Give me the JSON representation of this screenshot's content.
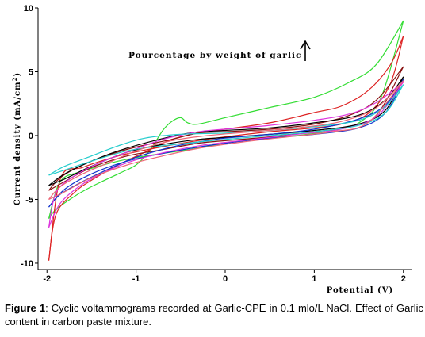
{
  "chart_data": {
    "type": "line",
    "title": "",
    "xlabel": "Potential (V)",
    "ylabel_main": "Current density (mA/cm",
    "ylabel_sup": "2",
    "ylabel_tail": ")",
    "xlim": [
      -2.1,
      2.1
    ],
    "ylim": [
      -10.5,
      10
    ],
    "x_ticks": [
      -2,
      -1,
      0,
      1,
      2
    ],
    "x_tick_labels": [
      "-2",
      "-1",
      "0",
      "1",
      "2"
    ],
    "y_ticks": [
      -10,
      -5,
      0,
      5,
      10
    ],
    "y_tick_labels": [
      "-10",
      "-5",
      "0",
      "5",
      "10"
    ],
    "grid": false,
    "annotation": "Pourcentage by weight of garlic",
    "series": [
      {
        "color": "#33dd33",
        "upper": [
          [
            -1.98,
            -6.5
          ],
          [
            -1.9,
            -5.8
          ],
          [
            -1.7,
            -4.8
          ],
          [
            -1.5,
            -4.0
          ],
          [
            -1.2,
            -3.0
          ],
          [
            -1.0,
            -2.3
          ],
          [
            -0.85,
            -1.2
          ],
          [
            -0.7,
            0.4
          ],
          [
            -0.6,
            1.1
          ],
          [
            -0.5,
            1.4
          ],
          [
            -0.42,
            1.0
          ],
          [
            -0.3,
            0.9
          ],
          [
            0,
            1.4
          ],
          [
            0.5,
            2.2
          ],
          [
            1.0,
            3.0
          ],
          [
            1.4,
            4.2
          ],
          [
            1.7,
            5.6
          ],
          [
            2.0,
            9.0
          ]
        ],
        "lower": [
          [
            -1.98,
            -6.5
          ],
          [
            -1.85,
            -3.6
          ],
          [
            -1.6,
            -2.8
          ],
          [
            -1.2,
            -2.0
          ],
          [
            -0.8,
            -1.5
          ],
          [
            -0.4,
            -1.1
          ],
          [
            0,
            -0.6
          ],
          [
            0.4,
            -0.2
          ],
          [
            0.8,
            0.0
          ],
          [
            1.2,
            0.4
          ],
          [
            1.5,
            1.0
          ],
          [
            1.75,
            3.0
          ],
          [
            2.0,
            9.0
          ]
        ]
      },
      {
        "color": "#dd2222",
        "upper": [
          [
            -1.98,
            -9.8
          ],
          [
            -1.9,
            -6.2
          ],
          [
            -1.7,
            -4.5
          ],
          [
            -1.5,
            -3.5
          ],
          [
            -1.2,
            -2.3
          ],
          [
            -0.9,
            -1.3
          ],
          [
            -0.6,
            -0.3
          ],
          [
            -0.3,
            0.2
          ],
          [
            0,
            0.5
          ],
          [
            0.5,
            1.0
          ],
          [
            1.0,
            1.8
          ],
          [
            1.3,
            2.3
          ],
          [
            1.6,
            3.5
          ],
          [
            1.85,
            5.5
          ],
          [
            2.0,
            7.8
          ]
        ],
        "lower": [
          [
            -1.98,
            -9.8
          ],
          [
            -1.85,
            -3.4
          ],
          [
            -1.6,
            -2.5
          ],
          [
            -1.2,
            -1.6
          ],
          [
            -0.8,
            -1.0
          ],
          [
            -0.4,
            -0.5
          ],
          [
            0,
            -0.1
          ],
          [
            0.5,
            0.3
          ],
          [
            1.0,
            0.6
          ],
          [
            1.3,
            0.9
          ],
          [
            1.6,
            1.7
          ],
          [
            1.85,
            4.0
          ],
          [
            2.0,
            7.8
          ]
        ]
      },
      {
        "color": "#881111",
        "upper": [
          [
            -1.98,
            -4.3
          ],
          [
            -1.85,
            -3.3
          ],
          [
            -1.6,
            -2.3
          ],
          [
            -1.3,
            -1.5
          ],
          [
            -1.0,
            -0.9
          ],
          [
            -0.6,
            -0.3
          ],
          [
            -0.3,
            0.2
          ],
          [
            0,
            0.3
          ],
          [
            0.5,
            0.5
          ],
          [
            1.0,
            0.9
          ],
          [
            1.4,
            1.6
          ],
          [
            1.7,
            2.8
          ],
          [
            2.0,
            5.4
          ]
        ],
        "lower": [
          [
            -1.98,
            -4.3
          ],
          [
            -1.8,
            -3.6
          ],
          [
            -1.5,
            -2.5
          ],
          [
            -1.1,
            -1.6
          ],
          [
            -0.7,
            -1.1
          ],
          [
            -0.3,
            -0.6
          ],
          [
            0,
            -0.4
          ],
          [
            0.5,
            -0.1
          ],
          [
            1.0,
            0.3
          ],
          [
            1.4,
            0.7
          ],
          [
            1.7,
            1.6
          ],
          [
            2.0,
            5.4
          ]
        ]
      },
      {
        "color": "#000000",
        "upper": [
          [
            -1.98,
            -3.9
          ],
          [
            -1.8,
            -3.0
          ],
          [
            -1.5,
            -2.0
          ],
          [
            -1.2,
            -1.2
          ],
          [
            -0.8,
            -0.4
          ],
          [
            -0.4,
            0.2
          ],
          [
            0,
            0.4
          ],
          [
            0.5,
            0.6
          ],
          [
            1.0,
            1.0
          ],
          [
            1.5,
            1.6
          ],
          [
            1.8,
            2.8
          ],
          [
            2.0,
            4.6
          ]
        ],
        "lower": [
          [
            -1.98,
            -3.9
          ],
          [
            -1.8,
            -3.4
          ],
          [
            -1.5,
            -2.4
          ],
          [
            -1.1,
            -1.3
          ],
          [
            -0.7,
            -0.7
          ],
          [
            -0.3,
            -0.3
          ],
          [
            0,
            -0.15
          ],
          [
            0.5,
            0.1
          ],
          [
            1.0,
            0.4
          ],
          [
            1.5,
            0.9
          ],
          [
            1.8,
            2.0
          ],
          [
            2.0,
            4.6
          ]
        ]
      },
      {
        "color": "#1133cc",
        "upper": [
          [
            -1.98,
            -5.6
          ],
          [
            -1.85,
            -4.6
          ],
          [
            -1.6,
            -3.6
          ],
          [
            -1.3,
            -2.6
          ],
          [
            -1.0,
            -1.7
          ],
          [
            -0.6,
            -0.9
          ],
          [
            -0.3,
            -0.5
          ],
          [
            0,
            -0.2
          ],
          [
            0.5,
            0.1
          ],
          [
            1.0,
            0.5
          ],
          [
            1.5,
            1.3
          ],
          [
            1.8,
            2.4
          ],
          [
            2.0,
            4.4
          ]
        ],
        "lower": [
          [
            -1.98,
            -5.6
          ],
          [
            -1.8,
            -4.2
          ],
          [
            -1.5,
            -3.0
          ],
          [
            -1.1,
            -2.0
          ],
          [
            -0.7,
            -1.4
          ],
          [
            -0.3,
            -0.9
          ],
          [
            0,
            -0.6
          ],
          [
            0.5,
            -0.2
          ],
          [
            1.0,
            0.1
          ],
          [
            1.5,
            0.6
          ],
          [
            1.8,
            1.8
          ],
          [
            2.0,
            4.4
          ]
        ]
      },
      {
        "color": "#dd33dd",
        "upper": [
          [
            -1.98,
            -7.2
          ],
          [
            -1.9,
            -4.5
          ],
          [
            -1.7,
            -3.2
          ],
          [
            -1.4,
            -2.1
          ],
          [
            -1.1,
            -1.3
          ],
          [
            -0.7,
            -0.3
          ],
          [
            -0.3,
            0.3
          ],
          [
            0,
            0.5
          ],
          [
            0.5,
            0.8
          ],
          [
            1.0,
            1.2
          ],
          [
            1.4,
            1.7
          ],
          [
            1.7,
            2.6
          ],
          [
            2.0,
            4.2
          ]
        ],
        "lower": [
          [
            -1.98,
            -7.2
          ],
          [
            -1.85,
            -5.3
          ],
          [
            -1.6,
            -3.8
          ],
          [
            -1.3,
            -2.7
          ],
          [
            -1.0,
            -1.9
          ],
          [
            -0.6,
            -1.2
          ],
          [
            -0.2,
            -0.7
          ],
          [
            0.3,
            -0.3
          ],
          [
            0.8,
            0.1
          ],
          [
            1.3,
            0.5
          ],
          [
            1.7,
            1.5
          ],
          [
            2.0,
            4.2
          ]
        ]
      },
      {
        "color": "#22cccc",
        "upper": [
          [
            -1.98,
            -3.1
          ],
          [
            -1.8,
            -2.4
          ],
          [
            -1.5,
            -1.6
          ],
          [
            -1.2,
            -0.8
          ],
          [
            -0.9,
            -0.2
          ],
          [
            -0.5,
            0.1
          ],
          [
            0,
            0.2
          ],
          [
            0.5,
            0.4
          ],
          [
            1.0,
            0.7
          ],
          [
            1.5,
            1.2
          ],
          [
            1.8,
            2.3
          ],
          [
            2.0,
            4.0
          ]
        ],
        "lower": [
          [
            -1.98,
            -3.1
          ],
          [
            -1.8,
            -2.7
          ],
          [
            -1.5,
            -2.0
          ],
          [
            -1.1,
            -1.2
          ],
          [
            -0.7,
            -0.8
          ],
          [
            -0.3,
            -0.5
          ],
          [
            0,
            -0.3
          ],
          [
            0.5,
            0.0
          ],
          [
            1.0,
            0.3
          ],
          [
            1.5,
            0.8
          ],
          [
            1.8,
            1.8
          ],
          [
            2.0,
            4.0
          ]
        ]
      },
      {
        "color": "#ee6677",
        "upper": [
          [
            -1.98,
            -5.0
          ],
          [
            -1.85,
            -4.0
          ],
          [
            -1.6,
            -3.0
          ],
          [
            -1.3,
            -2.1
          ],
          [
            -1.0,
            -1.2
          ],
          [
            -0.6,
            -0.4
          ],
          [
            -0.2,
            0.0
          ],
          [
            0.3,
            0.3
          ],
          [
            0.8,
            0.6
          ],
          [
            1.3,
            1.1
          ],
          [
            1.7,
            2.2
          ],
          [
            2.0,
            4.3
          ]
        ],
        "lower": [
          [
            -1.98,
            -5.0
          ],
          [
            -1.8,
            -4.4
          ],
          [
            -1.5,
            -3.3
          ],
          [
            -1.1,
            -2.3
          ],
          [
            -0.7,
            -1.6
          ],
          [
            -0.3,
            -1.0
          ],
          [
            0.2,
            -0.5
          ],
          [
            0.7,
            -0.1
          ],
          [
            1.2,
            0.3
          ],
          [
            1.6,
            1.0
          ],
          [
            2.0,
            4.3
          ]
        ]
      }
    ]
  },
  "caption": {
    "label": "Figure 1",
    "text": ": Cyclic voltammograms recorded at Garlic-CPE in 0.1 mlo/L NaCl. Effect of Garlic content in carbon paste mixture."
  }
}
